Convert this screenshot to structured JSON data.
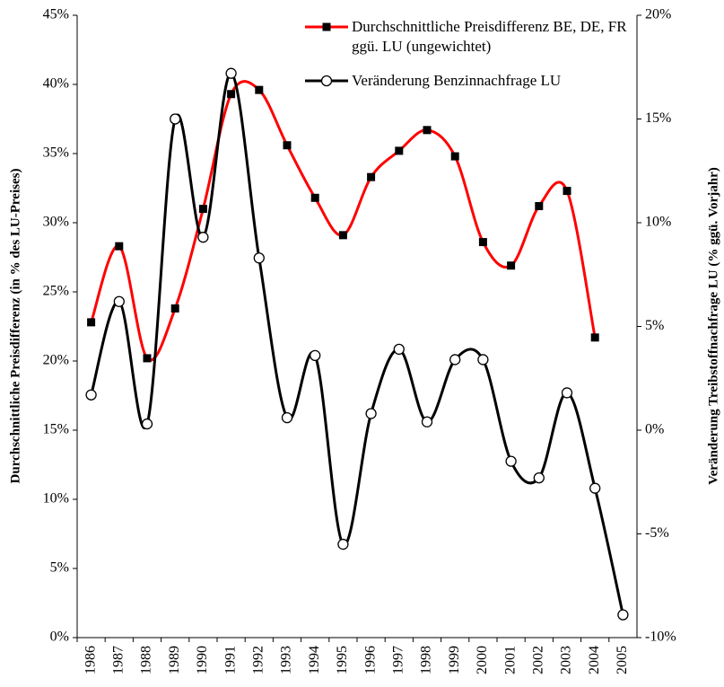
{
  "chart_data": {
    "type": "line",
    "categories": [
      "1986",
      "1987",
      "1988",
      "1989",
      "1990",
      "1991",
      "1992",
      "1993",
      "1994",
      "1995",
      "1996",
      "1997",
      "1998",
      "1999",
      "2000",
      "2001",
      "2002",
      "2003",
      "2004",
      "2005"
    ],
    "series": [
      {
        "name": "Durchschnittliche Preisdifferenz BE, DE, FR ggü. LU (ungewichtet)",
        "color": "#ff0000",
        "marker": "square",
        "axis": "y",
        "values": [
          22.8,
          28.3,
          20.2,
          23.8,
          31.0,
          39.3,
          39.6,
          35.6,
          31.8,
          29.1,
          33.3,
          35.2,
          36.7,
          34.8,
          28.6,
          26.9,
          31.2,
          32.3,
          21.7,
          null
        ]
      },
      {
        "name": "Veränderung Benzinnachfrage LU",
        "color": "#000000",
        "marker": "circle",
        "axis": "y2",
        "values": [
          1.7,
          6.2,
          0.3,
          15.0,
          9.3,
          17.2,
          8.3,
          0.6,
          3.6,
          -5.5,
          0.8,
          3.9,
          0.4,
          3.4,
          3.4,
          -1.5,
          -2.3,
          1.8,
          -2.8,
          -8.9
        ]
      }
    ],
    "ylabel": "Durchschnittliche Preisdifferenz (in % des LU-Preises)",
    "y2label": "Veränderung Treibstoffnachfrage LU (% ggü. Vorjahr)",
    "ylim": [
      0,
      45
    ],
    "yticks": [
      {
        "value": 0,
        "label": "0%"
      },
      {
        "value": 5,
        "label": "5%"
      },
      {
        "value": 10,
        "label": "10%"
      },
      {
        "value": 15,
        "label": "15%"
      },
      {
        "value": 20,
        "label": "20%"
      },
      {
        "value": 25,
        "label": "25%"
      },
      {
        "value": 30,
        "label": "30%"
      },
      {
        "value": 35,
        "label": "35%"
      },
      {
        "value": 40,
        "label": "40%"
      },
      {
        "value": 45,
        "label": "45%"
      }
    ],
    "y2lim": [
      -10,
      20
    ],
    "y2ticks": [
      {
        "value": -10,
        "label": "-10%"
      },
      {
        "value": -5,
        "label": "-5%"
      },
      {
        "value": 0,
        "label": "0%"
      },
      {
        "value": 5,
        "label": "5%"
      },
      {
        "value": 10,
        "label": "10%"
      },
      {
        "value": 15,
        "label": "15%"
      },
      {
        "value": 20,
        "label": "20%"
      }
    ],
    "legend": "upper right",
    "smooth": true
  }
}
